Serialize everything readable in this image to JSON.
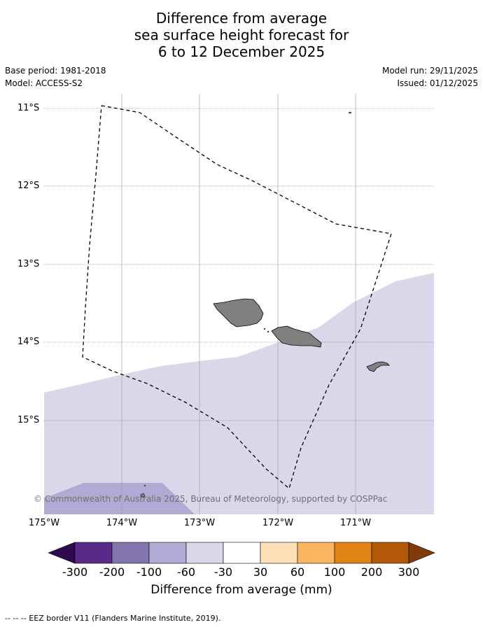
{
  "title": {
    "line1": "Difference from average",
    "line2": "sea surface height forecast for",
    "line3": "6 to 12 December 2025"
  },
  "meta": {
    "base_period": "Base period: 1981-2018",
    "model": "Model: ACCESS-S2",
    "model_run": "Model run: 29/11/2025",
    "issued": "Issued: 01/12/2025"
  },
  "map": {
    "lat_labels": [
      "11°S",
      "12°S",
      "13°S",
      "14°S",
      "15°S"
    ],
    "lon_labels": [
      "175°W",
      "174°W",
      "173°W",
      "172°W",
      "171°W"
    ],
    "land_color": "#808080",
    "anomaly_colors": {
      "minus_30_to_minus_60": "#d8d8ea",
      "minus_60_to_minus_100": "#b0aad4"
    },
    "copyright": "© Commonwealth of Australia 2025, Bureau of Meteorology, supported by COSPPac"
  },
  "colorbar": {
    "ticks": [
      "-300",
      "-200",
      "-100",
      "-60",
      "-30",
      "30",
      "60",
      "100",
      "200",
      "300"
    ],
    "colors": [
      "#2d0a4e",
      "#5a2a8a",
      "#8475b0",
      "#b0aad4",
      "#d8d8ea",
      "#ffffff",
      "#fee0b6",
      "#fbb45f",
      "#e08214",
      "#b35806",
      "#7f3b08"
    ],
    "label": "Difference from average (mm)"
  },
  "footer": "--  --  -- EEZ border V11 (Flanders Marine Institute, 2019)."
}
